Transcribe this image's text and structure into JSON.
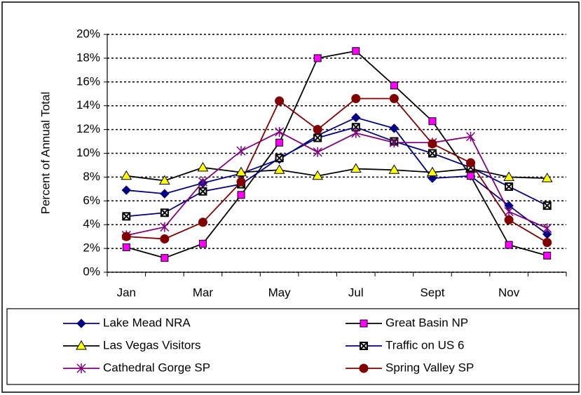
{
  "chart_data": {
    "type": "line",
    "y_label": "Percent of Annual Total",
    "categories": [
      "Jan",
      null,
      "Mar",
      null,
      "May",
      null,
      "Jul",
      null,
      "Sept",
      null,
      "Nov",
      null
    ],
    "ylim": [
      0,
      20
    ],
    "yticks": [
      {
        "value": 0,
        "label": "0%"
      },
      {
        "value": 2,
        "label": "2%"
      },
      {
        "value": 4,
        "label": "4%"
      },
      {
        "value": 6,
        "label": "6%"
      },
      {
        "value": 8,
        "label": "8%"
      },
      {
        "value": 10,
        "label": "10%"
      },
      {
        "value": 12,
        "label": "12%"
      },
      {
        "value": 14,
        "label": "14%"
      },
      {
        "value": 16,
        "label": "16%"
      },
      {
        "value": 18,
        "label": "18%"
      },
      {
        "value": 20,
        "label": "20%"
      }
    ],
    "grid": true,
    "legend": "bottom",
    "series": [
      {
        "name": "Lake Mead NRA",
        "color": "#000080",
        "marker": "diamond",
        "marker_color": "#000080",
        "values": [
          6.9,
          6.6,
          7.5,
          8.3,
          9.5,
          11.5,
          13.0,
          12.1,
          7.9,
          8.1,
          5.6,
          3.2
        ]
      },
      {
        "name": "Great Basin NP",
        "color": "#000000",
        "marker": "square",
        "marker_color": "#ff00ff",
        "values": [
          2.1,
          1.2,
          2.4,
          6.5,
          10.9,
          18.0,
          18.6,
          15.7,
          12.7,
          8.1,
          2.3,
          1.4
        ]
      },
      {
        "name": "Las Vegas Visitors",
        "color": "#000000",
        "marker": "triangle",
        "marker_color": "#ffff00",
        "values": [
          8.1,
          7.7,
          8.8,
          8.4,
          8.6,
          8.1,
          8.7,
          8.6,
          8.4,
          8.7,
          8.0,
          7.9
        ]
      },
      {
        "name": "Traffic on US 6",
        "color": "#000080",
        "marker": "x-square",
        "marker_color": "#ffffff",
        "values": [
          4.7,
          5.0,
          6.8,
          7.4,
          9.6,
          11.3,
          12.2,
          11.0,
          10.0,
          8.8,
          7.2,
          5.6
        ]
      },
      {
        "name": "Cathedral Gorge SP",
        "color": "#800080",
        "marker": "star",
        "marker_color": "#800080",
        "values": [
          3.1,
          3.8,
          7.6,
          10.2,
          11.8,
          10.1,
          11.7,
          10.9,
          10.9,
          11.4,
          5.1,
          3.7
        ]
      },
      {
        "name": "Spring Valley SP",
        "color": "#800000",
        "marker": "circle",
        "marker_color": "#800000",
        "values": [
          3.0,
          2.8,
          4.2,
          7.6,
          14.4,
          12.0,
          14.6,
          14.6,
          10.8,
          9.2,
          4.4,
          2.5
        ]
      }
    ]
  }
}
